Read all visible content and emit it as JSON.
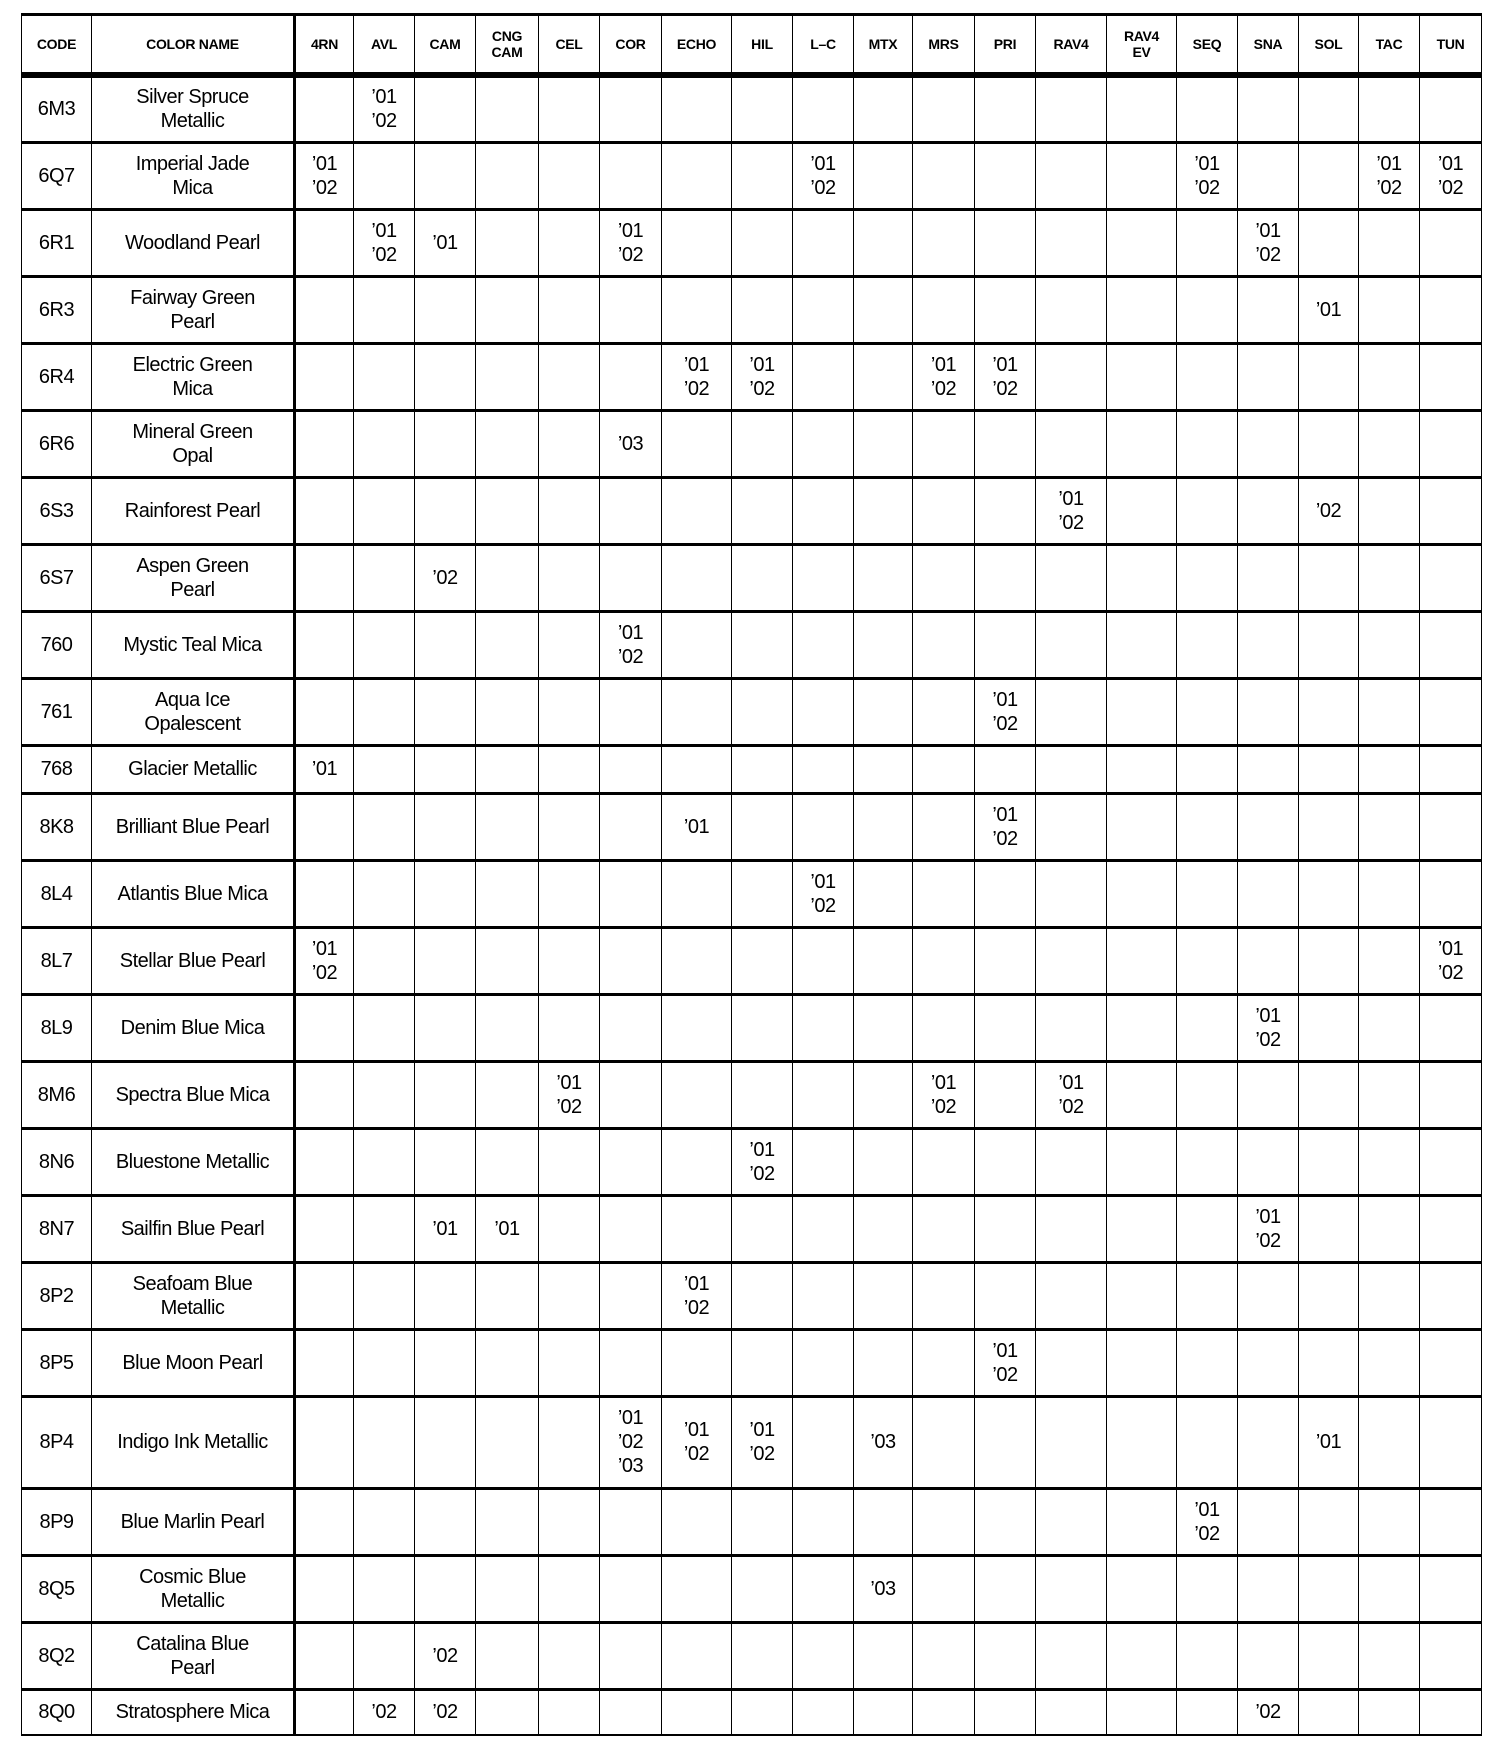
{
  "headers": {
    "code": "CODE",
    "color_name": "COLOR NAME",
    "models": [
      "4RN",
      "AVL",
      "CAM",
      "CNG\nCAM",
      "CEL",
      "COR",
      "ECHO",
      "HIL",
      "L–C",
      "MTX",
      "MRS",
      "PRI",
      "RAV4",
      "RAV4\nEV",
      "SEQ",
      "SNA",
      "SOL",
      "TAC",
      "TUN"
    ]
  },
  "rows": [
    {
      "code": "6M3",
      "name": "Silver Spruce\nMetallic",
      "cells": {
        "1": "’01\n’02"
      }
    },
    {
      "code": "6Q7",
      "name": "Imperial Jade\nMica",
      "cells": {
        "0": "’01\n’02",
        "8": "’01\n’02",
        "14": "’01\n’02",
        "17": "’01\n’02",
        "18": "’01\n’02"
      }
    },
    {
      "code": "6R1",
      "name": "Woodland Pearl",
      "cells": {
        "1": "’01\n’02",
        "2": "’01",
        "5": "’01\n’02",
        "15": "’01\n’02"
      }
    },
    {
      "code": "6R3",
      "name": "Fairway Green\nPearl",
      "cells": {
        "16": "’01"
      }
    },
    {
      "code": "6R4",
      "name": "Electric Green\nMica",
      "cells": {
        "6": "’01\n’02",
        "7": "’01\n’02",
        "10": "’01\n’02",
        "11": "’01\n’02"
      }
    },
    {
      "code": "6R6",
      "name": "Mineral Green\nOpal",
      "cells": {
        "5": "’03"
      }
    },
    {
      "code": "6S3",
      "name": "Rainforest Pearl",
      "cells": {
        "12": "’01\n’02",
        "16": "’02"
      }
    },
    {
      "code": "6S7",
      "name": "Aspen Green\nPearl",
      "cells": {
        "2": "’02"
      }
    },
    {
      "code": "760",
      "name": "Mystic Teal Mica",
      "cells": {
        "5": "’01\n’02"
      }
    },
    {
      "code": "761",
      "name": "Aqua Ice\nOpalescent",
      "cells": {
        "11": "’01\n’02"
      }
    },
    {
      "code": "768",
      "name": "Glacier Metallic",
      "cells": {
        "0": "’01"
      }
    },
    {
      "code": "8K8",
      "name": "Brilliant Blue Pearl",
      "cells": {
        "6": "’01",
        "11": "’01\n’02"
      }
    },
    {
      "code": "8L4",
      "name": "Atlantis Blue Mica",
      "cells": {
        "8": "’01\n’02"
      }
    },
    {
      "code": "8L7",
      "name": "Stellar Blue Pearl",
      "cells": {
        "0": "’01\n’02",
        "18": "’01\n’02"
      }
    },
    {
      "code": "8L9",
      "name": "Denim Blue Mica",
      "cells": {
        "15": "’01\n’02"
      }
    },
    {
      "code": "8M6",
      "name": "Spectra Blue Mica",
      "cells": {
        "4": "’01\n’02",
        "10": "’01\n’02",
        "12": "’01\n’02"
      }
    },
    {
      "code": "8N6",
      "name": "Bluestone Metallic",
      "cells": {
        "7": "’01\n’02"
      }
    },
    {
      "code": "8N7",
      "name": "Sailfin Blue Pearl",
      "cells": {
        "2": "’01",
        "3": "’01",
        "15": "’01\n’02"
      }
    },
    {
      "code": "8P2",
      "name": "Seafoam Blue\nMetallic",
      "cells": {
        "6": "’01\n’02"
      }
    },
    {
      "code": "8P5",
      "name": "Blue Moon Pearl",
      "cells": {
        "11": "’01\n’02"
      }
    },
    {
      "code": "8P4",
      "name": "Indigo Ink Metallic",
      "cells": {
        "5": "’01\n’02\n’03",
        "6": "’01\n’02",
        "7": "’01\n’02",
        "9": "’03",
        "16": "’01"
      }
    },
    {
      "code": "8P9",
      "name": "Blue Marlin Pearl",
      "cells": {
        "14": "’01\n’02"
      }
    },
    {
      "code": "8Q5",
      "name": "Cosmic Blue\nMetallic",
      "cells": {
        "9": "’03"
      }
    },
    {
      "code": "8Q2",
      "name": "Catalina Blue\nPearl",
      "cells": {
        "2": "’02"
      }
    },
    {
      "code": "8Q0",
      "name": "Stratosphere Mica",
      "cells": {
        "1": "’02",
        "2": "’02",
        "15": "’02"
      }
    }
  ]
}
